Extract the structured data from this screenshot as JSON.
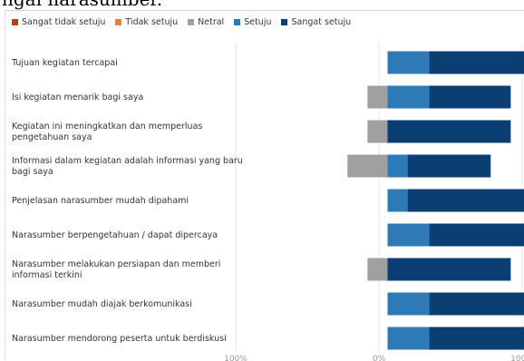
{
  "header_text": "ngai narasumber.",
  "colors": {
    "sangat_tidak_setuju": "#c43e00",
    "tidak_setuju": "#e8812f",
    "netral": "#a0a0a0",
    "setuju": "#2e7ab6",
    "sangat_setuju": "#0b3f73"
  },
  "chart_data": {
    "type": "bar",
    "orientation": "horizontal",
    "stacked": "diverging",
    "title": "",
    "xlabel": "",
    "ylabel": "",
    "xlim": [
      -100,
      100
    ],
    "x_tick_labels": [
      "100%",
      "0%",
      "100%"
    ],
    "grid": true,
    "legend_position": "top-left",
    "categories": [
      [
        "Tujuan kegiatan tercapai"
      ],
      [
        "Isi kegiatan menarik bagi saya"
      ],
      [
        "Kegiatan ini meningkatkan dan memperluas",
        "pengetahuan saya"
      ],
      [
        "Informasi dalam kegiatan adalah informasi yang baru",
        "bagi saya"
      ],
      [
        "Penjelasan narasumber mudah dipahami"
      ],
      [
        "Narasumber berpengetahuan / dapat dipercaya"
      ],
      [
        "Narasumber melakukan persiapan dan memberi",
        "informasi terkini"
      ],
      [
        "Narasumber mudah diajak berkomunikasi"
      ],
      [
        "Narasumber mendorong peserta untuk berdiskusi"
      ]
    ],
    "series": [
      {
        "name": "Sangat tidak setuju",
        "key": "sangat_tidak_setuju",
        "values": [
          0,
          0,
          0,
          0,
          0,
          0,
          0,
          0,
          0
        ]
      },
      {
        "name": "Tidak setuju",
        "key": "tidak_setuju",
        "values": [
          0,
          0,
          0,
          0,
          0,
          0,
          0,
          0,
          0
        ]
      },
      {
        "name": "Netral",
        "key": "netral",
        "values": [
          0,
          14,
          14,
          28,
          0,
          0,
          14,
          0,
          0
        ]
      },
      {
        "name": "Setuju",
        "key": "setuju",
        "values": [
          29,
          29,
          0,
          14,
          14,
          29,
          0,
          29,
          29
        ]
      },
      {
        "name": "Sangat setuju",
        "key": "sangat_setuju",
        "values": [
          71,
          57,
          86,
          58,
          86,
          71,
          86,
          71,
          71
        ]
      }
    ]
  }
}
